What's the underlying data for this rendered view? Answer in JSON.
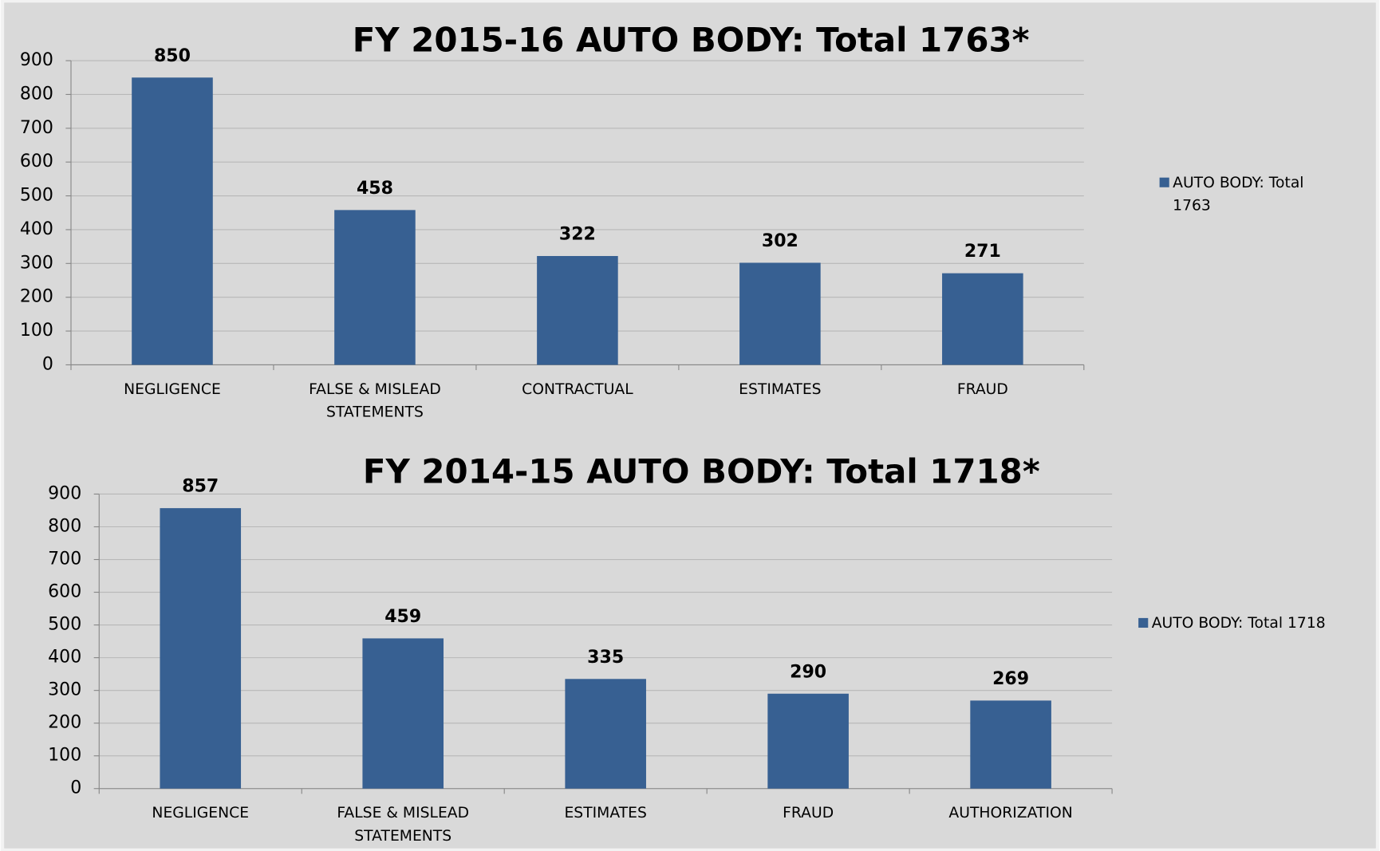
{
  "chart_data": [
    {
      "type": "bar",
      "title": "FY 2015-16 AUTO BODY: Total 1763*",
      "categories": [
        "NEGLIGENCE",
        "FALSE & MISLEAD STATEMENTS",
        "CONTRACTUAL",
        "ESTIMATES",
        "FRAUD"
      ],
      "series": [
        {
          "name": "AUTO BODY: Total 1763",
          "color": "#376092",
          "values": [
            850,
            458,
            322,
            302,
            271
          ]
        }
      ],
      "ylim": [
        0,
        900
      ],
      "yticks": [
        0,
        100,
        200,
        300,
        400,
        500,
        600,
        700,
        800,
        900
      ],
      "grid": true,
      "legend": "right"
    },
    {
      "type": "bar",
      "title": "FY 2014-15 AUTO BODY: Total 1718*",
      "categories": [
        "NEGLIGENCE",
        "FALSE & MISLEAD STATEMENTS",
        "ESTIMATES",
        "FRAUD",
        "AUTHORIZATION"
      ],
      "series": [
        {
          "name": "AUTO BODY: Total 1718",
          "color": "#376092",
          "values": [
            857,
            459,
            335,
            290,
            269
          ]
        }
      ],
      "ylim": [
        0,
        900
      ],
      "yticks": [
        0,
        100,
        200,
        300,
        400,
        500,
        600,
        700,
        800,
        900
      ],
      "grid": true,
      "legend": "right"
    }
  ]
}
